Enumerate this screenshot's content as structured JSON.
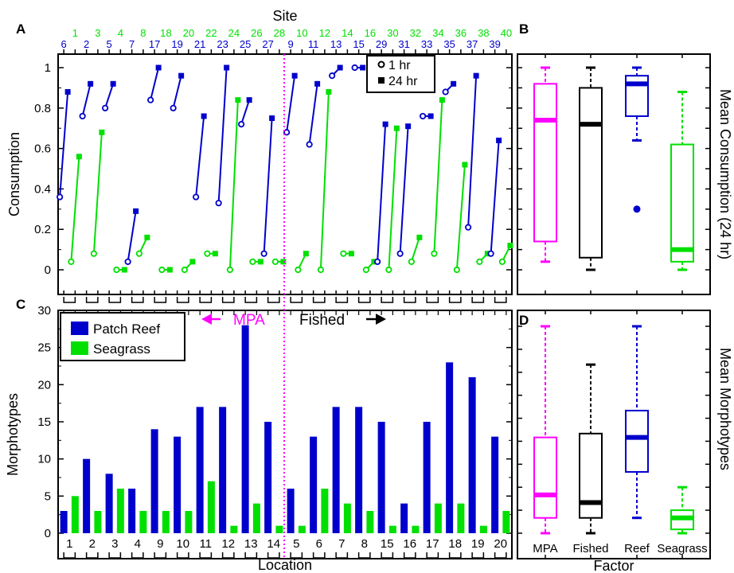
{
  "colors": {
    "reef": "#0000cc",
    "seagrass": "#00e000",
    "mpa": "#ff00ff",
    "fished": "#000000"
  },
  "panels": {
    "a": "A",
    "b": "B",
    "c": "C",
    "d": "D"
  },
  "annotations": {
    "mpa": "MPA",
    "fished": "Fished"
  },
  "chart_data": [
    {
      "id": "A",
      "type": "line",
      "title": "Site",
      "ylabel": "Consumption",
      "ylim": [
        0,
        1
      ],
      "yticks": [
        0,
        0.2,
        0.4,
        0.6,
        0.8,
        1
      ],
      "xlim": [
        0.5,
        40.5
      ],
      "divider_x": 28.5,
      "legend": {
        "position": "top-right",
        "entries": [
          "1 hr",
          "24 hr"
        ]
      },
      "series": [
        {
          "site": "6",
          "habitat": "reef",
          "x": 1,
          "values": [
            0.36,
            0.88
          ]
        },
        {
          "site": "1",
          "habitat": "seagrass",
          "x": 2,
          "values": [
            0.04,
            0.56
          ]
        },
        {
          "site": "2",
          "habitat": "reef",
          "x": 3,
          "values": [
            0.76,
            0.92
          ]
        },
        {
          "site": "3",
          "habitat": "seagrass",
          "x": 4,
          "values": [
            0.08,
            0.68
          ]
        },
        {
          "site": "5",
          "habitat": "reef",
          "x": 5,
          "values": [
            0.8,
            0.92
          ]
        },
        {
          "site": "4",
          "habitat": "seagrass",
          "x": 6,
          "values": [
            0.0,
            0.0
          ]
        },
        {
          "site": "7",
          "habitat": "reef",
          "x": 7,
          "values": [
            0.04,
            0.29
          ]
        },
        {
          "site": "8",
          "habitat": "seagrass",
          "x": 8,
          "values": [
            0.08,
            0.16
          ]
        },
        {
          "site": "17",
          "habitat": "reef",
          "x": 9,
          "values": [
            0.84,
            1.0
          ]
        },
        {
          "site": "18",
          "habitat": "seagrass",
          "x": 10,
          "values": [
            0.0,
            0.0
          ]
        },
        {
          "site": "19",
          "habitat": "reef",
          "x": 11,
          "values": [
            0.8,
            0.96
          ]
        },
        {
          "site": "20",
          "habitat": "seagrass",
          "x": 12,
          "values": [
            0.0,
            0.04
          ]
        },
        {
          "site": "21",
          "habitat": "reef",
          "x": 13,
          "values": [
            0.36,
            0.76
          ]
        },
        {
          "site": "22",
          "habitat": "seagrass",
          "x": 14,
          "values": [
            0.08,
            0.08
          ]
        },
        {
          "site": "23",
          "habitat": "reef",
          "x": 15,
          "values": [
            0.33,
            1.0
          ]
        },
        {
          "site": "24",
          "habitat": "seagrass",
          "x": 16,
          "values": [
            0.0,
            0.84
          ]
        },
        {
          "site": "25",
          "habitat": "reef",
          "x": 17,
          "values": [
            0.72,
            0.84
          ]
        },
        {
          "site": "26",
          "habitat": "seagrass",
          "x": 18,
          "values": [
            0.04,
            0.04
          ]
        },
        {
          "site": "27",
          "habitat": "reef",
          "x": 19,
          "values": [
            0.08,
            0.75
          ]
        },
        {
          "site": "28",
          "habitat": "seagrass",
          "x": 20,
          "values": [
            0.04,
            0.04
          ]
        },
        {
          "site": "9",
          "habitat": "reef",
          "x": 21,
          "values": [
            0.68,
            0.96
          ]
        },
        {
          "site": "10",
          "habitat": "seagrass",
          "x": 22,
          "values": [
            0.0,
            0.08
          ]
        },
        {
          "site": "11",
          "habitat": "reef",
          "x": 23,
          "values": [
            0.62,
            0.92
          ]
        },
        {
          "site": "12",
          "habitat": "seagrass",
          "x": 24,
          "values": [
            0.0,
            0.88
          ]
        },
        {
          "site": "13",
          "habitat": "reef",
          "x": 25,
          "values": [
            0.96,
            1.0
          ]
        },
        {
          "site": "14",
          "habitat": "seagrass",
          "x": 26,
          "values": [
            0.08,
            0.08
          ]
        },
        {
          "site": "15",
          "habitat": "reef",
          "x": 27,
          "values": [
            1.0,
            1.0
          ]
        },
        {
          "site": "16",
          "habitat": "seagrass",
          "x": 28,
          "values": [
            0.0,
            0.04
          ]
        },
        {
          "site": "29",
          "habitat": "reef",
          "x": 29,
          "values": [
            0.04,
            0.72
          ]
        },
        {
          "site": "30",
          "habitat": "seagrass",
          "x": 30,
          "values": [
            0.0,
            0.7
          ]
        },
        {
          "site": "31",
          "habitat": "reef",
          "x": 31,
          "values": [
            0.08,
            0.71
          ]
        },
        {
          "site": "32",
          "habitat": "seagrass",
          "x": 32,
          "values": [
            0.04,
            0.16
          ]
        },
        {
          "site": "33",
          "habitat": "reef",
          "x": 33,
          "values": [
            0.76,
            0.76
          ]
        },
        {
          "site": "34",
          "habitat": "seagrass",
          "x": 34,
          "values": [
            0.08,
            0.84
          ]
        },
        {
          "site": "35",
          "habitat": "reef",
          "x": 35,
          "values": [
            0.88,
            0.92
          ]
        },
        {
          "site": "36",
          "habitat": "seagrass",
          "x": 36,
          "values": [
            0.0,
            0.52
          ]
        },
        {
          "site": "37",
          "habitat": "reef",
          "x": 37,
          "values": [
            0.21,
            0.96
          ]
        },
        {
          "site": "38",
          "habitat": "seagrass",
          "x": 38,
          "values": [
            0.04,
            0.08
          ]
        },
        {
          "site": "39",
          "habitat": "reef",
          "x": 39,
          "values": [
            0.08,
            0.64
          ]
        },
        {
          "site": "40",
          "habitat": "seagrass",
          "x": 40,
          "values": [
            0.04,
            0.12
          ]
        }
      ]
    },
    {
      "id": "B",
      "type": "box",
      "ylabel": "Mean Consumption (24 hr)",
      "ylim": [
        0,
        1
      ],
      "boxes": [
        {
          "factor": "MPA",
          "color": "mpa",
          "whisker_low": 0.04,
          "q1": 0.14,
          "median": 0.74,
          "q3": 0.92,
          "whisker_high": 1.0,
          "outliers": []
        },
        {
          "factor": "Fished",
          "color": "fished",
          "whisker_low": 0.0,
          "q1": 0.06,
          "median": 0.72,
          "q3": 0.9,
          "whisker_high": 1.0,
          "outliers": []
        },
        {
          "factor": "Reef",
          "color": "reef",
          "whisker_low": 0.64,
          "q1": 0.76,
          "median": 0.92,
          "q3": 0.96,
          "whisker_high": 1.0,
          "outliers": [
            0.3
          ]
        },
        {
          "factor": "Seagrass",
          "color": "seagrass",
          "whisker_low": 0.0,
          "q1": 0.04,
          "median": 0.1,
          "q3": 0.62,
          "whisker_high": 0.88,
          "outliers": []
        }
      ]
    },
    {
      "id": "C",
      "type": "bar",
      "xlabel": "Location",
      "ylabel": "Morphotypes",
      "ylim": [
        0,
        30
      ],
      "yticks": [
        0,
        5,
        10,
        15,
        20,
        25,
        30
      ],
      "divider_after_index": 9,
      "legend": {
        "position": "top-left"
      },
      "categories": [
        "1",
        "2",
        "3",
        "4",
        "9",
        "10",
        "11",
        "12",
        "13",
        "14",
        "5",
        "6",
        "7",
        "8",
        "15",
        "16",
        "17",
        "18",
        "19",
        "20"
      ],
      "series": [
        {
          "name": "Patch Reef",
          "color": "reef",
          "values": [
            3,
            10,
            8,
            6,
            14,
            13,
            17,
            17,
            28,
            15,
            6,
            13,
            17,
            17,
            15,
            4,
            15,
            23,
            21,
            13
          ]
        },
        {
          "name": "Seagrass",
          "color": "seagrass",
          "values": [
            5,
            3,
            6,
            3,
            3,
            3,
            7,
            1,
            4,
            1,
            1,
            6,
            4,
            3,
            1,
            1,
            4,
            4,
            1,
            3
          ]
        }
      ]
    },
    {
      "id": "D",
      "type": "box",
      "ylabel": "Mean Morphotypes",
      "xlabel": "Factor",
      "ylim": [
        0,
        30
      ],
      "boxes": [
        {
          "factor": "MPA",
          "color": "mpa",
          "whisker_low": 1,
          "q1": 3,
          "median": 6,
          "q3": 13.5,
          "whisker_high": 28,
          "outliers": []
        },
        {
          "factor": "Fished",
          "color": "fished",
          "whisker_low": 1,
          "q1": 3,
          "median": 5,
          "q3": 14,
          "whisker_high": 23,
          "outliers": []
        },
        {
          "factor": "Reef",
          "color": "reef",
          "whisker_low": 3,
          "q1": 9,
          "median": 13.5,
          "q3": 17,
          "whisker_high": 28,
          "outliers": []
        },
        {
          "factor": "Seagrass",
          "color": "seagrass",
          "whisker_low": 1,
          "q1": 1.5,
          "median": 3,
          "q3": 4,
          "whisker_high": 7,
          "outliers": []
        }
      ]
    }
  ]
}
